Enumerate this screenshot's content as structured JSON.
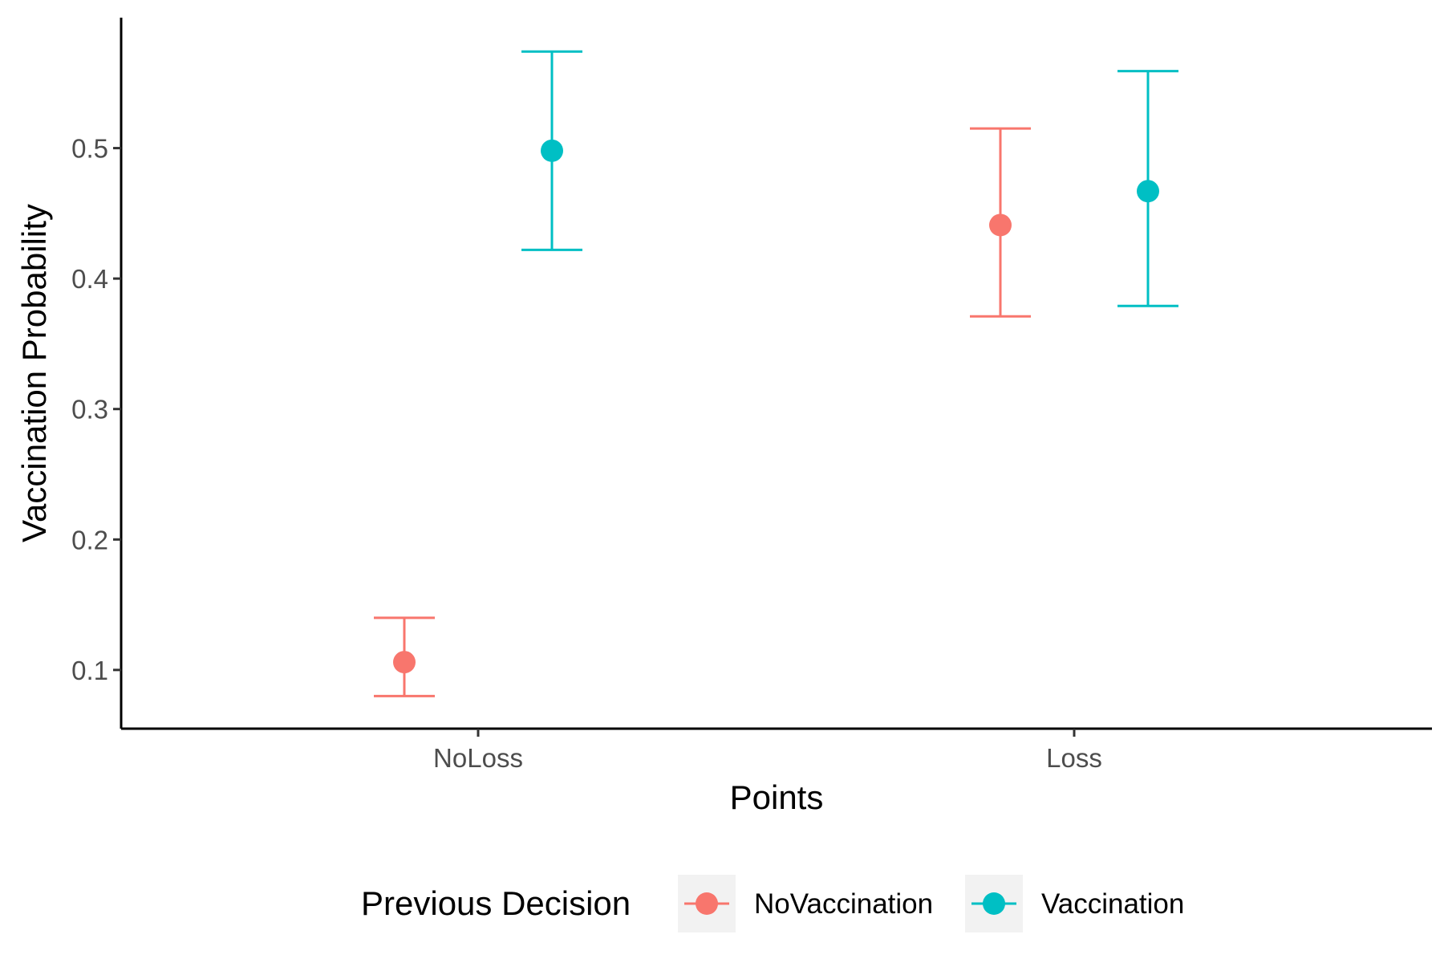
{
  "chart_data": {
    "type": "scatter",
    "xlabel": "Points",
    "ylabel": "Vaccination Probability",
    "categories": [
      "NoLoss",
      "Loss"
    ],
    "ylim": [
      0.055,
      0.6
    ],
    "yticks": [
      0.1,
      0.2,
      0.3,
      0.4,
      0.5
    ],
    "ytick_labels": [
      "0.1",
      "0.2",
      "0.3",
      "0.4",
      "0.5"
    ],
    "grid": false,
    "legend": {
      "title": "Previous Decision",
      "position": "bottom"
    },
    "series": [
      {
        "name": "NoVaccination",
        "color": "#F8766D",
        "points": [
          {
            "category": "NoLoss",
            "value": 0.106,
            "lower": 0.08,
            "upper": 0.14
          },
          {
            "category": "Loss",
            "value": 0.441,
            "lower": 0.371,
            "upper": 0.515
          }
        ]
      },
      {
        "name": "Vaccination",
        "color": "#00BFC4",
        "points": [
          {
            "category": "NoLoss",
            "value": 0.498,
            "lower": 0.422,
            "upper": 0.574
          },
          {
            "category": "Loss",
            "value": 0.467,
            "lower": 0.379,
            "upper": 0.559
          }
        ]
      }
    ]
  }
}
